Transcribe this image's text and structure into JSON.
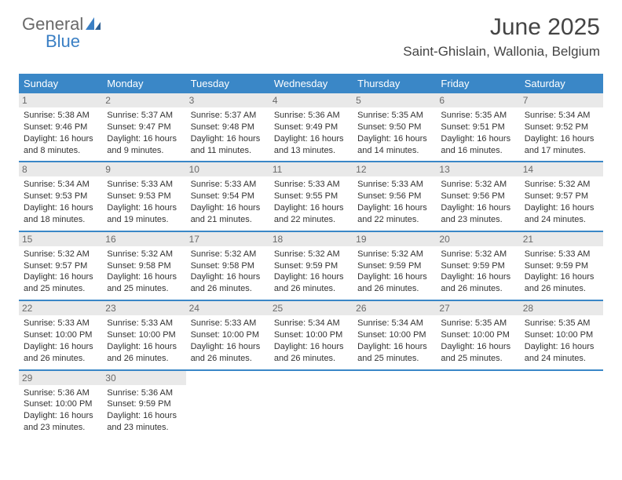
{
  "brand": {
    "word1": "General",
    "word2": "Blue"
  },
  "header": {
    "title": "June 2025",
    "location": "Saint-Ghislain, Wallonia, Belgium"
  },
  "colors": {
    "header_bg": "#3a87c7",
    "daynum_bg": "#e9e9e9",
    "daynum_text": "#6a6a6a",
    "border": "#3a87c7",
    "brand_grey": "#6a6a6a",
    "brand_blue": "#3a7fc4"
  },
  "weekdays": [
    "Sunday",
    "Monday",
    "Tuesday",
    "Wednesday",
    "Thursday",
    "Friday",
    "Saturday"
  ],
  "weeks": [
    [
      {
        "n": "1",
        "sunrise": "5:38 AM",
        "sunset": "9:46 PM",
        "daylight": "16 hours and 8 minutes."
      },
      {
        "n": "2",
        "sunrise": "5:37 AM",
        "sunset": "9:47 PM",
        "daylight": "16 hours and 9 minutes."
      },
      {
        "n": "3",
        "sunrise": "5:37 AM",
        "sunset": "9:48 PM",
        "daylight": "16 hours and 11 minutes."
      },
      {
        "n": "4",
        "sunrise": "5:36 AM",
        "sunset": "9:49 PM",
        "daylight": "16 hours and 13 minutes."
      },
      {
        "n": "5",
        "sunrise": "5:35 AM",
        "sunset": "9:50 PM",
        "daylight": "16 hours and 14 minutes."
      },
      {
        "n": "6",
        "sunrise": "5:35 AM",
        "sunset": "9:51 PM",
        "daylight": "16 hours and 16 minutes."
      },
      {
        "n": "7",
        "sunrise": "5:34 AM",
        "sunset": "9:52 PM",
        "daylight": "16 hours and 17 minutes."
      }
    ],
    [
      {
        "n": "8",
        "sunrise": "5:34 AM",
        "sunset": "9:53 PM",
        "daylight": "16 hours and 18 minutes."
      },
      {
        "n": "9",
        "sunrise": "5:33 AM",
        "sunset": "9:53 PM",
        "daylight": "16 hours and 19 minutes."
      },
      {
        "n": "10",
        "sunrise": "5:33 AM",
        "sunset": "9:54 PM",
        "daylight": "16 hours and 21 minutes."
      },
      {
        "n": "11",
        "sunrise": "5:33 AM",
        "sunset": "9:55 PM",
        "daylight": "16 hours and 22 minutes."
      },
      {
        "n": "12",
        "sunrise": "5:33 AM",
        "sunset": "9:56 PM",
        "daylight": "16 hours and 22 minutes."
      },
      {
        "n": "13",
        "sunrise": "5:32 AM",
        "sunset": "9:56 PM",
        "daylight": "16 hours and 23 minutes."
      },
      {
        "n": "14",
        "sunrise": "5:32 AM",
        "sunset": "9:57 PM",
        "daylight": "16 hours and 24 minutes."
      }
    ],
    [
      {
        "n": "15",
        "sunrise": "5:32 AM",
        "sunset": "9:57 PM",
        "daylight": "16 hours and 25 minutes."
      },
      {
        "n": "16",
        "sunrise": "5:32 AM",
        "sunset": "9:58 PM",
        "daylight": "16 hours and 25 minutes."
      },
      {
        "n": "17",
        "sunrise": "5:32 AM",
        "sunset": "9:58 PM",
        "daylight": "16 hours and 26 minutes."
      },
      {
        "n": "18",
        "sunrise": "5:32 AM",
        "sunset": "9:59 PM",
        "daylight": "16 hours and 26 minutes."
      },
      {
        "n": "19",
        "sunrise": "5:32 AM",
        "sunset": "9:59 PM",
        "daylight": "16 hours and 26 minutes."
      },
      {
        "n": "20",
        "sunrise": "5:32 AM",
        "sunset": "9:59 PM",
        "daylight": "16 hours and 26 minutes."
      },
      {
        "n": "21",
        "sunrise": "5:33 AM",
        "sunset": "9:59 PM",
        "daylight": "16 hours and 26 minutes."
      }
    ],
    [
      {
        "n": "22",
        "sunrise": "5:33 AM",
        "sunset": "10:00 PM",
        "daylight": "16 hours and 26 minutes."
      },
      {
        "n": "23",
        "sunrise": "5:33 AM",
        "sunset": "10:00 PM",
        "daylight": "16 hours and 26 minutes."
      },
      {
        "n": "24",
        "sunrise": "5:33 AM",
        "sunset": "10:00 PM",
        "daylight": "16 hours and 26 minutes."
      },
      {
        "n": "25",
        "sunrise": "5:34 AM",
        "sunset": "10:00 PM",
        "daylight": "16 hours and 26 minutes."
      },
      {
        "n": "26",
        "sunrise": "5:34 AM",
        "sunset": "10:00 PM",
        "daylight": "16 hours and 25 minutes."
      },
      {
        "n": "27",
        "sunrise": "5:35 AM",
        "sunset": "10:00 PM",
        "daylight": "16 hours and 25 minutes."
      },
      {
        "n": "28",
        "sunrise": "5:35 AM",
        "sunset": "10:00 PM",
        "daylight": "16 hours and 24 minutes."
      }
    ],
    [
      {
        "n": "29",
        "sunrise": "5:36 AM",
        "sunset": "10:00 PM",
        "daylight": "16 hours and 23 minutes."
      },
      {
        "n": "30",
        "sunrise": "5:36 AM",
        "sunset": "9:59 PM",
        "daylight": "16 hours and 23 minutes."
      },
      null,
      null,
      null,
      null,
      null
    ]
  ]
}
